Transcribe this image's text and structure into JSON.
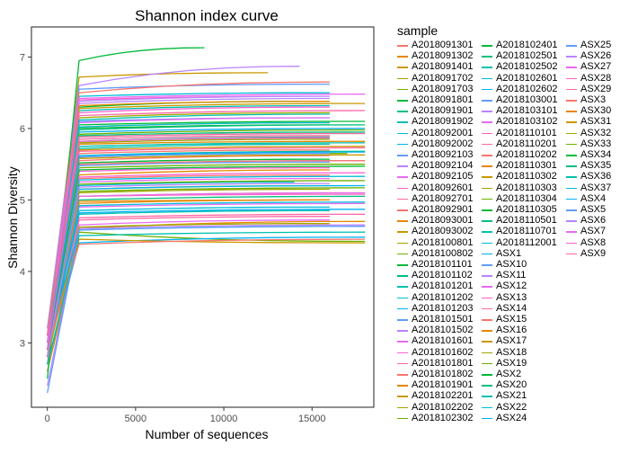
{
  "chart_data": {
    "type": "line",
    "title": "Shannon index curve",
    "xlabel": "Number of sequences",
    "ylabel": "Shannon Diversity",
    "xlim": [
      -900,
      18500
    ],
    "ylim": [
      2.1,
      7.42
    ],
    "x_ticks": [
      0,
      5000,
      10000,
      15000
    ],
    "y_ticks": [
      3,
      4,
      5,
      6,
      7
    ],
    "x_tick_labels": [
      "0",
      "5000",
      "10000",
      "15000"
    ],
    "y_tick_labels": [
      "3",
      "4",
      "5",
      "6",
      "7"
    ],
    "grid": false,
    "legend_title": "sample",
    "legend_position": "right",
    "series_names": [
      "A2018091301",
      "A2018091302",
      "A2018091401",
      "A2018091702",
      "A2018091703",
      "A2018091801",
      "A2018091901",
      "A2018091902",
      "A2018092001",
      "A2018092002",
      "A2018092103",
      "A2018092104",
      "A2018092105",
      "A2018092601",
      "A2018092701",
      "A2018092901",
      "A2018093001",
      "A2018093002",
      "A2018100801",
      "A2018100802",
      "A2018101101",
      "A2018101102",
      "A2018101201",
      "A2018101202",
      "A2018101203",
      "A2018101501",
      "A2018101502",
      "A2018101601",
      "A2018101602",
      "A2018101801",
      "A2018101802",
      "A2018101901",
      "A2018102201",
      "A2018102202",
      "A2018102302",
      "A2018102401",
      "A2018102501",
      "A2018102502",
      "A2018102601",
      "A2018102602",
      "A2018103001",
      "A2018103101",
      "A2018103102",
      "A2018110101",
      "A2018110201",
      "A2018110202",
      "A2018110301",
      "A2018110302",
      "A2018110303",
      "A2018110304",
      "A2018110305",
      "A2018110501",
      "A2018110701",
      "A2018112001",
      "ASX1",
      "ASX10",
      "ASX11",
      "ASX12",
      "ASX13",
      "ASX14",
      "ASX15",
      "ASX16",
      "ASX17",
      "ASX18",
      "ASX19",
      "ASX2",
      "ASX20",
      "ASX21",
      "ASX22",
      "ASX24",
      "ASX25",
      "ASX26",
      "ASX27",
      "ASX28",
      "ASX29",
      "ASX3",
      "ASX30",
      "ASX31",
      "ASX32",
      "ASX33",
      "ASX34",
      "ASX35",
      "ASX36",
      "ASX37",
      "ASX4",
      "ASX5",
      "ASX6",
      "ASX7",
      "ASX8",
      "ASX9"
    ],
    "series_start_values": [
      3.0,
      2.9,
      3.1,
      3.2,
      2.8,
      3.0,
      2.7,
      3.1,
      2.9,
      3.0,
      2.8,
      3.2,
      2.6,
      3.0,
      2.9,
      3.1,
      2.8,
      3.0,
      2.7,
      2.9,
      3.1,
      2.8,
      3.0,
      2.9,
      2.7,
      3.1,
      3.0,
      2.8,
      2.9,
      3.0,
      3.1,
      2.8,
      2.6,
      3.0,
      2.9,
      2.8,
      3.0,
      2.9,
      3.1,
      3.0,
      2.8,
      2.9,
      3.0,
      2.7,
      3.1,
      2.9,
      3.0,
      2.8,
      2.9,
      3.0,
      2.5,
      2.9,
      3.0,
      2.8,
      2.9,
      3.0,
      2.4,
      3.0,
      2.9,
      2.8,
      3.1,
      3.0,
      2.9,
      2.8,
      3.0,
      2.9,
      3.0,
      2.9,
      2.8,
      3.0,
      2.9,
      3.1,
      2.9,
      3.0,
      2.8,
      2.9,
      3.1,
      2.9,
      3.0,
      2.8,
      2.9,
      3.0,
      2.7,
      3.0,
      2.9,
      2.3,
      2.8,
      3.0,
      2.9,
      3.1
    ],
    "series_values_at_1800": [
      5.55,
      5.35,
      6.72,
      6.15,
      5.6,
      6.05,
      5.9,
      6.25,
      5.2,
      5.95,
      6.1,
      6.6,
      4.65,
      5.05,
      5.85,
      5.3,
      4.98,
      5.7,
      5.15,
      4.55,
      6.3,
      5.0,
      5.75,
      4.85,
      4.4,
      6.55,
      5.5,
      5.25,
      6.4,
      4.75,
      5.65,
      4.6,
      4.45,
      5.1,
      5.45,
      6.0,
      5.62,
      4.8,
      6.45,
      5.15,
      5.8,
      6.35,
      4.9,
      5.4,
      6.18,
      5.5,
      4.95,
      6.28,
      5.8,
      5.22,
      6.95,
      5.98,
      5.72,
      4.92,
      4.82,
      5.6,
      4.6,
      6.08,
      5.32,
      4.72,
      6.5,
      5.78,
      5.05,
      4.62,
      5.92,
      5.52,
      5.88,
      6.12,
      5.28,
      4.58,
      5.48,
      6.38,
      5.05,
      6.22,
      5.68,
      4.38,
      6.32,
      5.58,
      6.02,
      5.12,
      5.42,
      5.82,
      4.5,
      6.02,
      5.62,
      4.58,
      5.18,
      6.42,
      5.82,
      5.88
    ],
    "series_final_values": [
      5.62,
      5.42,
      6.78,
      6.22,
      5.65,
      6.1,
      5.95,
      6.32,
      5.25,
      6.0,
      6.15,
      6.87,
      4.72,
      5.08,
      5.9,
      5.35,
      5.0,
      5.75,
      5.2,
      4.42,
      6.38,
      5.05,
      5.8,
      4.9,
      4.48,
      6.62,
      5.55,
      5.3,
      6.45,
      4.8,
      5.7,
      4.7,
      4.4,
      5.15,
      5.5,
      6.05,
      5.68,
      4.85,
      6.5,
      5.2,
      5.85,
      6.42,
      4.95,
      5.45,
      6.25,
      5.55,
      5.0,
      6.35,
      5.85,
      5.27,
      7.13,
      6.05,
      5.78,
      4.97,
      4.87,
      5.65,
      4.65,
      6.15,
      5.38,
      4.77,
      6.65,
      5.82,
      5.1,
      4.67,
      5.98,
      5.57,
      5.93,
      6.2,
      5.33,
      4.63,
      5.53,
      6.45,
      5.1,
      6.3,
      5.73,
      4.45,
      6.38,
      5.63,
      6.08,
      5.17,
      5.47,
      5.88,
      4.55,
      6.08,
      5.67,
      4.63,
      5.23,
      6.48,
      5.87,
      5.93
    ],
    "series_max_x": [
      16000,
      16000,
      12500,
      16000,
      17000,
      18000,
      18000,
      16000,
      14000,
      18000,
      16000,
      14300,
      16000,
      18000,
      16000,
      16000,
      16000,
      18000,
      16000,
      18000,
      14300,
      18000,
      18000,
      16000,
      18000,
      16000,
      18000,
      16000,
      14300,
      18000,
      16000,
      18000,
      18000,
      16000,
      18000,
      16000,
      18000,
      16000,
      16000,
      18000,
      16000,
      16000,
      18000,
      16000,
      18000,
      18000,
      16000,
      18000,
      16000,
      18000,
      8900,
      18000,
      16000,
      18000,
      18000,
      16000,
      18000,
      16000,
      18000,
      16000,
      16000,
      18000,
      18000,
      16000,
      18000,
      16000,
      18000,
      16000,
      18000,
      18000,
      16000,
      16000,
      18000,
      16000,
      18000,
      18000,
      16000,
      18000,
      16000,
      18000,
      18000,
      16000,
      18000,
      16000,
      18000,
      18000,
      16000,
      18000,
      16000,
      18000
    ]
  },
  "palette": [
    "#F8766D",
    "#E58700",
    "#C99800",
    "#A3A500",
    "#6BB100",
    "#00BA38",
    "#00BF7D",
    "#00C0AF",
    "#00BCD8",
    "#00B0F6",
    "#619CFF",
    "#B983FF",
    "#E76BF3",
    "#FD61D1",
    "#FF67A4"
  ],
  "axis_color": "#333333",
  "text_color": "#000000"
}
